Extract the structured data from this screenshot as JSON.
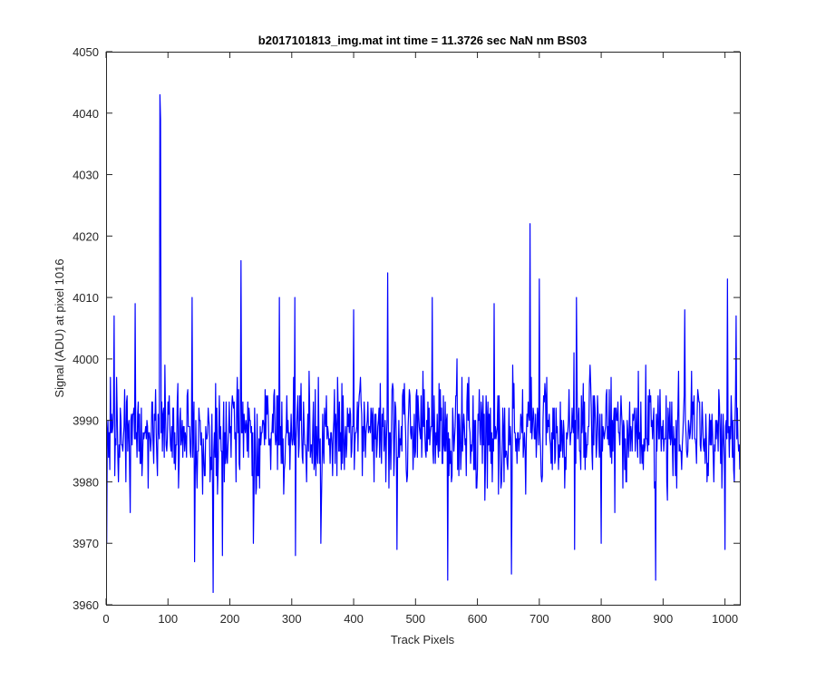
{
  "chart_data": {
    "type": "line",
    "title": "b2017101813_img.mat int time = 11.3726 sec  NaN nm BS03",
    "xlabel": "Track Pixels",
    "ylabel": "Signal (ADU) at pixel 1016",
    "xlim": [
      0,
      1024
    ],
    "ylim": [
      3960,
      4050
    ],
    "xticks": [
      0,
      100,
      200,
      300,
      400,
      500,
      600,
      700,
      800,
      900,
      1000
    ],
    "yticks": [
      3960,
      3970,
      3980,
      3990,
      4000,
      4010,
      4020,
      4030,
      4040,
      4050
    ],
    "grid": false,
    "series": [
      {
        "color": "#0000ff",
        "x_start": 1,
        "x_step": 1,
        "baseline": 3988,
        "noise_amplitude": 9,
        "notable_points": [
          {
            "x": 1,
            "y": 3970
          },
          {
            "x": 13,
            "y": 4007
          },
          {
            "x": 47,
            "y": 4009
          },
          {
            "x": 87,
            "y": 4043
          },
          {
            "x": 88,
            "y": 4039
          },
          {
            "x": 139,
            "y": 4010
          },
          {
            "x": 143,
            "y": 3967
          },
          {
            "x": 173,
            "y": 3962
          },
          {
            "x": 188,
            "y": 3968
          },
          {
            "x": 218,
            "y": 4016
          },
          {
            "x": 238,
            "y": 3970
          },
          {
            "x": 280,
            "y": 4010
          },
          {
            "x": 305,
            "y": 4010
          },
          {
            "x": 306,
            "y": 3968
          },
          {
            "x": 347,
            "y": 3970
          },
          {
            "x": 400,
            "y": 4008
          },
          {
            "x": 455,
            "y": 4014
          },
          {
            "x": 470,
            "y": 3969
          },
          {
            "x": 527,
            "y": 4010
          },
          {
            "x": 552,
            "y": 3964
          },
          {
            "x": 627,
            "y": 4009
          },
          {
            "x": 655,
            "y": 3965
          },
          {
            "x": 685,
            "y": 4022
          },
          {
            "x": 700,
            "y": 4013
          },
          {
            "x": 757,
            "y": 3969
          },
          {
            "x": 760,
            "y": 4010
          },
          {
            "x": 800,
            "y": 3970
          },
          {
            "x": 888,
            "y": 3964
          },
          {
            "x": 935,
            "y": 4008
          },
          {
            "x": 1000,
            "y": 3969
          },
          {
            "x": 1004,
            "y": 4013
          },
          {
            "x": 1018,
            "y": 4007
          },
          {
            "x": 1024,
            "y": 3982
          }
        ]
      }
    ]
  }
}
